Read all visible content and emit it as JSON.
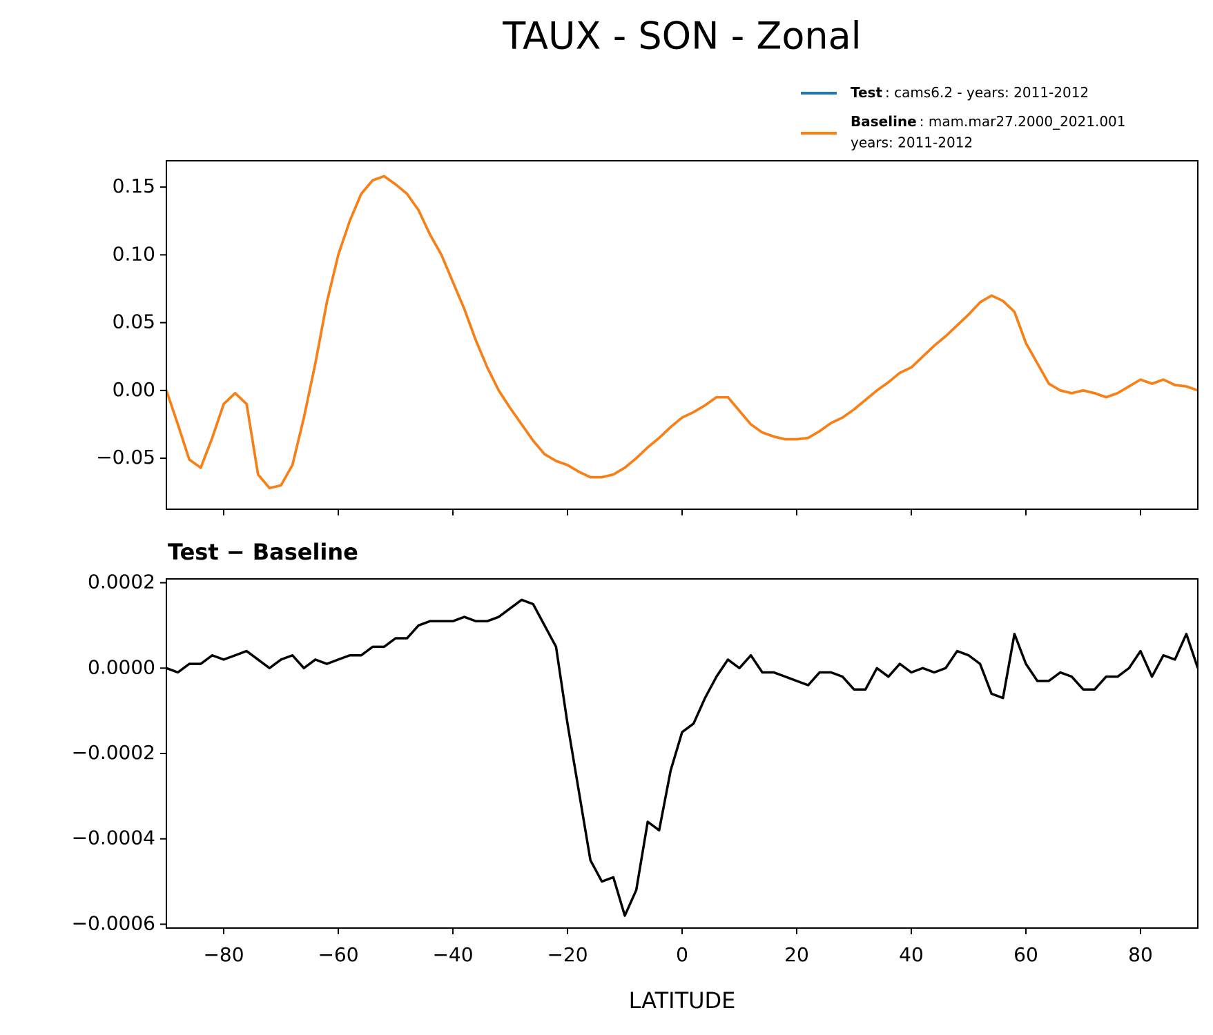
{
  "chart_data": [
    {
      "type": "line",
      "title": "TAUX - SON - Zonal",
      "x": [
        -90,
        -88,
        -86,
        -84,
        -82,
        -80,
        -78,
        -76,
        -74,
        -72,
        -70,
        -68,
        -66,
        -64,
        -62,
        -60,
        -58,
        -56,
        -54,
        -52,
        -50,
        -48,
        -46,
        -44,
        -42,
        -40,
        -38,
        -36,
        -34,
        -32,
        -30,
        -28,
        -26,
        -24,
        -22,
        -20,
        -18,
        -16,
        -14,
        -12,
        -10,
        -8,
        -6,
        -4,
        -2,
        0,
        2,
        4,
        6,
        8,
        10,
        12,
        14,
        16,
        18,
        20,
        22,
        24,
        26,
        28,
        30,
        32,
        34,
        36,
        38,
        40,
        42,
        44,
        46,
        48,
        50,
        52,
        54,
        56,
        58,
        60,
        62,
        64,
        66,
        68,
        70,
        72,
        74,
        76,
        78,
        80,
        82,
        84,
        86,
        88,
        90
      ],
      "series": [
        {
          "name": "Test",
          "description": ": cams6.2 - years: 2011-2012",
          "color": "#1f77b4",
          "values": [
            0.0,
            -0.025,
            -0.051,
            -0.057,
            -0.035,
            -0.01,
            -0.002,
            -0.01,
            -0.062,
            -0.072,
            -0.07,
            -0.055,
            -0.02,
            0.02,
            0.065,
            0.1,
            0.125,
            0.145,
            0.155,
            0.158,
            0.152,
            0.145,
            0.133,
            0.115,
            0.1,
            0.08,
            0.06,
            0.037,
            0.017,
            0.0,
            -0.013,
            -0.025,
            -0.037,
            -0.047,
            -0.052,
            -0.055,
            -0.06,
            -0.064,
            -0.064,
            -0.062,
            -0.057,
            -0.05,
            -0.042,
            -0.035,
            -0.027,
            -0.02,
            -0.016,
            -0.011,
            -0.005,
            -0.005,
            -0.015,
            -0.025,
            -0.031,
            -0.034,
            -0.036,
            -0.036,
            -0.035,
            -0.03,
            -0.024,
            -0.02,
            -0.014,
            -0.007,
            0.0,
            0.006,
            0.013,
            0.017,
            0.025,
            0.033,
            0.04,
            0.048,
            0.056,
            0.065,
            0.07,
            0.066,
            0.058,
            0.035,
            0.02,
            0.005,
            0.0,
            -0.002,
            0.0,
            -0.002,
            -0.005,
            -0.002,
            0.003,
            0.008,
            0.005,
            0.008,
            0.004,
            0.003,
            0.0
          ]
        },
        {
          "name": "Baseline",
          "description": [
            ": mam.mar27.2000_2021.001",
            "years: 2011-2012"
          ],
          "color": "#ff7f0e",
          "values": [
            0.0,
            -0.025,
            -0.051,
            -0.057,
            -0.035,
            -0.01,
            -0.002,
            -0.01,
            -0.062,
            -0.072,
            -0.07,
            -0.055,
            -0.02,
            0.02,
            0.065,
            0.1,
            0.125,
            0.145,
            0.155,
            0.158,
            0.152,
            0.145,
            0.133,
            0.115,
            0.1,
            0.08,
            0.06,
            0.037,
            0.017,
            0.0,
            -0.013,
            -0.025,
            -0.037,
            -0.047,
            -0.052,
            -0.055,
            -0.06,
            -0.064,
            -0.064,
            -0.062,
            -0.057,
            -0.05,
            -0.042,
            -0.035,
            -0.027,
            -0.02,
            -0.016,
            -0.011,
            -0.005,
            -0.005,
            -0.015,
            -0.025,
            -0.031,
            -0.034,
            -0.036,
            -0.036,
            -0.035,
            -0.03,
            -0.024,
            -0.02,
            -0.014,
            -0.007,
            0.0,
            0.006,
            0.013,
            0.017,
            0.025,
            0.033,
            0.04,
            0.048,
            0.056,
            0.065,
            0.07,
            0.066,
            0.058,
            0.035,
            0.02,
            0.005,
            0.0,
            -0.002,
            0.0,
            -0.002,
            -0.005,
            -0.002,
            0.003,
            0.008,
            0.005,
            0.008,
            0.004,
            0.003,
            0.0
          ]
        }
      ],
      "xlim": [
        -90,
        90
      ],
      "xticks": [
        -80,
        -60,
        -40,
        -20,
        0,
        20,
        40,
        60,
        80
      ],
      "ylim": [
        -0.0876,
        0.1694
      ],
      "yticks": [
        {
          "value": -0.05,
          "label": "−0.05"
        },
        {
          "value": 0,
          "label": "0.00"
        },
        0.05,
        {
          "value": 0.1,
          "label": "0.10"
        },
        0.15
      ]
    },
    {
      "type": "line",
      "title": "Test − Baseline",
      "xlabel": "LATITUDE",
      "x": [
        -90,
        -88,
        -86,
        -84,
        -82,
        -80,
        -78,
        -76,
        -74,
        -72,
        -70,
        -68,
        -66,
        -64,
        -62,
        -60,
        -58,
        -56,
        -54,
        -52,
        -50,
        -48,
        -46,
        -44,
        -42,
        -40,
        -38,
        -36,
        -34,
        -32,
        -30,
        -28,
        -26,
        -24,
        -22,
        -20,
        -18,
        -16,
        -14,
        -12,
        -10,
        -8,
        -6,
        -4,
        -2,
        0,
        2,
        4,
        6,
        8,
        10,
        12,
        14,
        16,
        18,
        20,
        22,
        24,
        26,
        28,
        30,
        32,
        34,
        36,
        38,
        40,
        42,
        44,
        46,
        48,
        50,
        52,
        54,
        56,
        58,
        60,
        62,
        64,
        66,
        68,
        70,
        72,
        74,
        76,
        78,
        80,
        82,
        84,
        86,
        88,
        90
      ],
      "color": "#000000",
      "values": [
        0,
        -1e-05,
        1e-05,
        1e-05,
        3e-05,
        2e-05,
        3e-05,
        4e-05,
        2e-05,
        0.0,
        2e-05,
        3e-05,
        0.0,
        2e-05,
        1e-05,
        2e-05,
        3e-05,
        3e-05,
        5e-05,
        5e-05,
        7e-05,
        7e-05,
        0.0001,
        0.00011,
        0.00011,
        0.00011,
        0.00012,
        0.00011,
        0.00011,
        0.00012,
        0.00014,
        0.00016,
        0.00015,
        0.0001,
        5e-05,
        -0.00013,
        -0.00029,
        -0.00045,
        -0.0005,
        -0.00049,
        -0.00058,
        -0.00052,
        -0.00036,
        -0.00038,
        -0.00024,
        -0.00015,
        -0.00013,
        -7e-05,
        -2e-05,
        2e-05,
        0.0,
        3e-05,
        -1e-05,
        -1e-05,
        -2e-05,
        -3e-05,
        -4e-05,
        -1e-05,
        -1e-05,
        -2e-05,
        -5e-05,
        -5e-05,
        0.0,
        -2e-05,
        1e-05,
        -1e-05,
        0.0,
        -1e-05,
        0.0,
        4e-05,
        3e-05,
        1e-05,
        -6e-05,
        -7e-05,
        8e-05,
        1e-05,
        -3e-05,
        -3e-05,
        -1e-05,
        -2e-05,
        -5e-05,
        -5e-05,
        -2e-05,
        -2e-05,
        0.0,
        4e-05,
        -2e-05,
        3e-05,
        2e-05,
        8e-05,
        0.0
      ],
      "xlim": [
        -90,
        90
      ],
      "xticks": [
        {
          "value": -80,
          "label": "−80"
        },
        {
          "value": -60,
          "label": "−60"
        },
        {
          "value": -40,
          "label": "−40"
        },
        {
          "value": -20,
          "label": "−20"
        },
        0,
        20,
        40,
        60,
        80
      ],
      "ylim": [
        -0.000609,
        0.000209
      ],
      "yticks": [
        {
          "value": -0.0006,
          "label": "−0.0006"
        },
        {
          "value": -0.0004,
          "label": "−0.0004"
        },
        {
          "value": -0.0002,
          "label": "−0.0002"
        },
        {
          "value": 0,
          "label": "0.0000"
        },
        {
          "value": 0.0002,
          "label": "0.0002"
        }
      ]
    }
  ]
}
